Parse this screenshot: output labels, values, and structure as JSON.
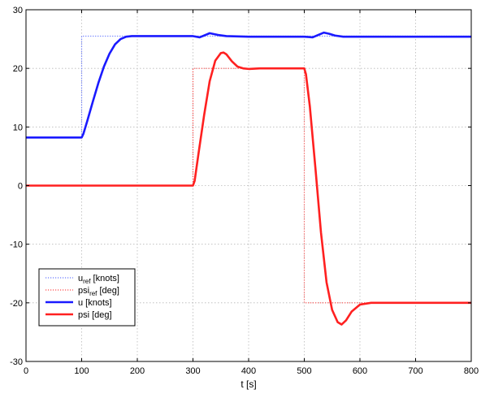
{
  "chart_data": {
    "type": "line",
    "title": "",
    "xlabel": "t [s]",
    "ylabel": "",
    "xlim": [
      0,
      800
    ],
    "ylim": [
      -30,
      30
    ],
    "xticks": [
      0,
      100,
      200,
      300,
      400,
      500,
      600,
      700,
      800
    ],
    "yticks": [
      -30,
      -20,
      -10,
      0,
      10,
      20,
      30
    ],
    "grid": true,
    "legend_position": "bottom-left",
    "series": [
      {
        "name": "u_ref [knots]",
        "legend_main": "u",
        "legend_sub": "ref",
        "legend_rest": " [knots]",
        "color": "#6b7cff",
        "style": "dotted",
        "width": 1.2,
        "x": [
          0,
          100,
          100,
          800
        ],
        "y": [
          8.2,
          8.2,
          25.5,
          25.5
        ]
      },
      {
        "name": "psi_ref [deg]",
        "legend_main": "psi",
        "legend_sub": "ref",
        "legend_rest": " [deg]",
        "color": "#ff4d4d",
        "style": "dotted",
        "width": 1.2,
        "x": [
          0,
          300,
          300,
          500,
          500,
          800
        ],
        "y": [
          0,
          0,
          20,
          20,
          -20,
          -20
        ]
      },
      {
        "name": "u [knots]",
        "legend_main": "u [knots]",
        "legend_sub": "",
        "legend_rest": "",
        "color": "#1a1aff",
        "style": "solid",
        "width": 2.6,
        "x": [
          0,
          100,
          103,
          110,
          120,
          130,
          140,
          150,
          160,
          170,
          180,
          190,
          200,
          250,
          300,
          312,
          320,
          330,
          345,
          360,
          400,
          450,
          500,
          515,
          525,
          535,
          545,
          555,
          570,
          600,
          800
        ],
        "y": [
          8.2,
          8.2,
          8.8,
          11.0,
          14.3,
          17.5,
          20.3,
          22.5,
          24.1,
          25.0,
          25.4,
          25.5,
          25.5,
          25.5,
          25.5,
          25.3,
          25.6,
          26.0,
          25.7,
          25.5,
          25.4,
          25.4,
          25.4,
          25.3,
          25.7,
          26.1,
          25.9,
          25.6,
          25.4,
          25.4,
          25.4
        ]
      },
      {
        "name": "psi [deg]",
        "legend_main": "psi [deg]",
        "legend_sub": "",
        "legend_rest": "",
        "color": "#ff2020",
        "style": "solid",
        "width": 2.6,
        "x": [
          0,
          300,
          303,
          310,
          320,
          330,
          340,
          350,
          355,
          360,
          370,
          380,
          390,
          400,
          420,
          450,
          500,
          503,
          510,
          520,
          530,
          540,
          550,
          560,
          567,
          575,
          585,
          600,
          620,
          650,
          800
        ],
        "y": [
          0,
          0,
          0.8,
          5.5,
          12.0,
          17.8,
          21.3,
          22.6,
          22.7,
          22.4,
          21.2,
          20.3,
          20.0,
          19.9,
          20.0,
          20.0,
          20.0,
          19.0,
          13.5,
          3.0,
          -8.0,
          -16.5,
          -21.2,
          -23.3,
          -23.7,
          -23.0,
          -21.5,
          -20.3,
          -20.0,
          -20.0,
          -20.0
        ]
      }
    ]
  }
}
